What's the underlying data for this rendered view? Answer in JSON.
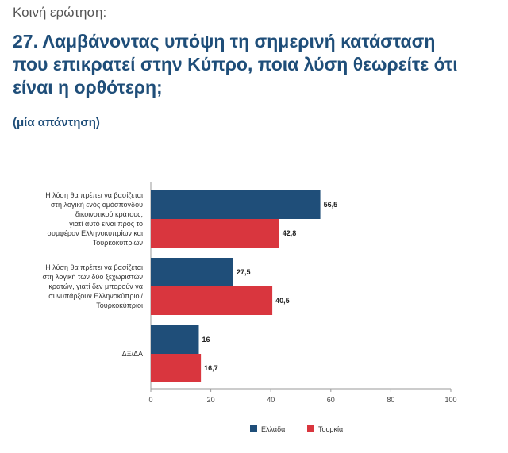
{
  "header": {
    "kicker": "Κοινή ερώτηση:",
    "question_line1": "27. Λαμβάνοντας υπόψη τη σημερινή κατάσταση",
    "question_line2": "που επικρατεί στην Κύπρο, ποια λύση θεωρείτε ότι",
    "question_line3": "είναι η ορθότερη;",
    "note": "(μία απάντηση)"
  },
  "chart_data": {
    "type": "bar",
    "orientation": "horizontal",
    "categories": [
      [
        "Η λύση θα πρέπει να βασίζεται",
        "στη λογική ενός ομόσπονδου",
        "δικοινοτικού κράτους,",
        "γιατί αυτό είναι προς το",
        "συμφέρον Ελληνοκυπρίων και",
        "Τουρκοκυπρίων"
      ],
      [
        "Η λύση θα πρέπει να βασίζεται",
        "στη λογική των δύο ξεχωριστών",
        "κρατών, γιατί δεν μπορούν να",
        "συνυπάρξουν Ελληνοκύπριοι/",
        "Τουρκοκύπριοι"
      ],
      [
        "ΔΞ/ΔΑ"
      ]
    ],
    "series": [
      {
        "name": "Ελλάδα",
        "color": "#1f4e79",
        "values": [
          56.5,
          27.5,
          16
        ],
        "labels": [
          "56,5",
          "27,5",
          "16"
        ]
      },
      {
        "name": "Τουρκία",
        "color": "#d9363e",
        "values": [
          42.8,
          40.5,
          16.7
        ],
        "labels": [
          "42,8",
          "40,5",
          "16,7"
        ]
      }
    ],
    "xlim": [
      0,
      100
    ],
    "xticks": [
      0,
      20,
      40,
      60,
      80,
      100
    ],
    "legend_position": "bottom",
    "grid": false
  }
}
